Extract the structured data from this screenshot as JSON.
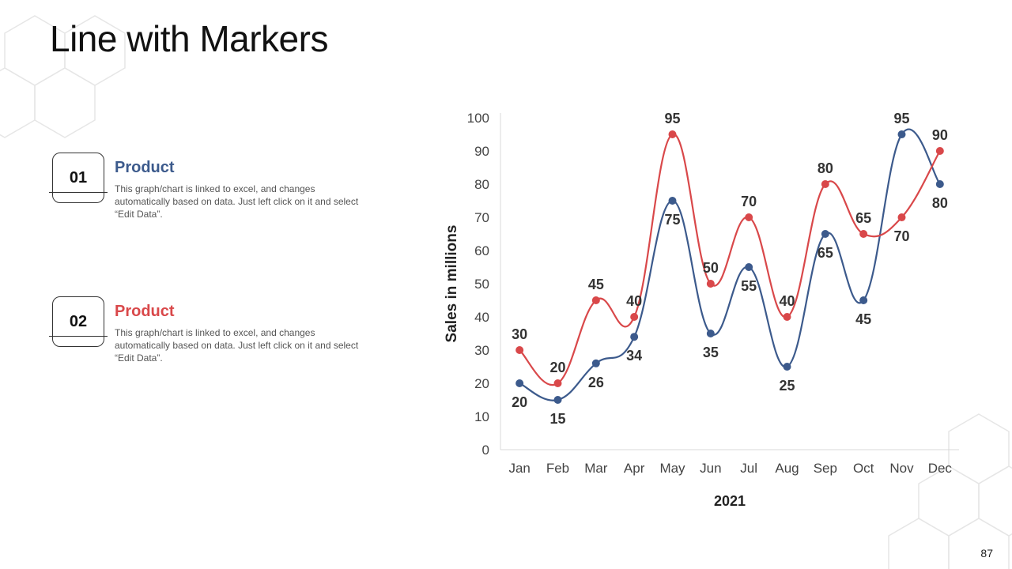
{
  "slide": {
    "title": "Line with Markers",
    "page_number": "87"
  },
  "items": [
    {
      "number": "01",
      "heading": "Product",
      "description": "This graph/chart is linked to excel, and changes automatically based on data. Just left click on it and select “Edit Data”.",
      "color": "#3c5a8c"
    },
    {
      "number": "02",
      "heading": "Product",
      "description": "This graph/chart is linked to excel, and changes automatically based on data. Just left click on it and select “Edit Data”.",
      "color": "#d9484a"
    }
  ],
  "chart_data": {
    "type": "line",
    "smooth": true,
    "markers": true,
    "categories": [
      "Jan",
      "Feb",
      "Mar",
      "Apr",
      "May",
      "Jun",
      "Jul",
      "Aug",
      "Sep",
      "Oct",
      "Nov",
      "Dec"
    ],
    "series": [
      {
        "color": "#3c5a8c",
        "values": [
          20,
          15,
          26,
          34,
          75,
          35,
          55,
          25,
          65,
          45,
          95,
          80
        ]
      },
      {
        "color": "#d9484a",
        "values": [
          30,
          20,
          45,
          40,
          95,
          50,
          70,
          40,
          80,
          65,
          70,
          90
        ]
      }
    ],
    "xlabel": "2021",
    "ylabel": "Sales in millions",
    "ylim": [
      0,
      100
    ],
    "yticks": [
      0,
      10,
      20,
      30,
      40,
      50,
      60,
      70,
      80,
      90,
      100
    ],
    "grid": false,
    "legend": "none",
    "data_labels": true
  }
}
